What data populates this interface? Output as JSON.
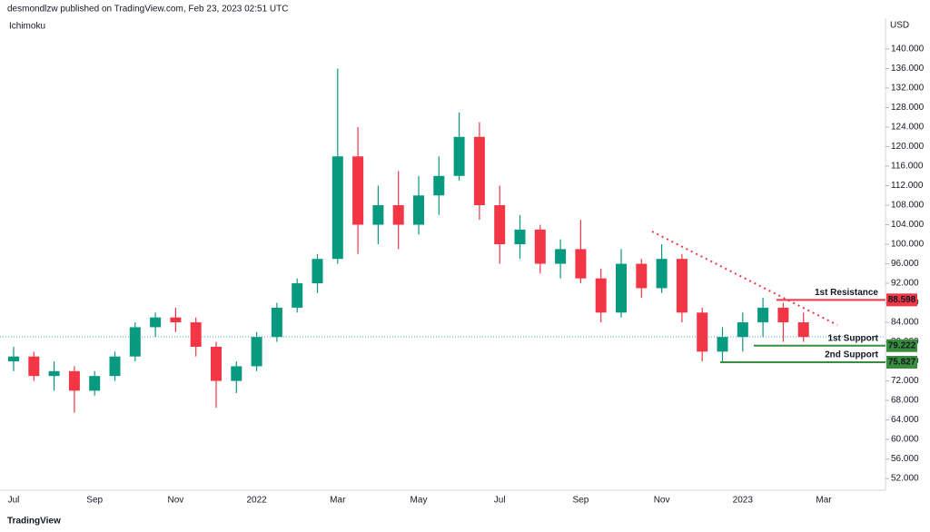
{
  "header": {
    "byline": "desmondlzw published on TradingView.com, Feb 23, 2023 02:51 UTC",
    "brand": "TradingView"
  },
  "chart_data": {
    "type": "candlestick",
    "indicator": "Ichimoku",
    "y_unit": "USD",
    "categories": [
      "Jul",
      null,
      null,
      null,
      "Sep",
      null,
      null,
      null,
      "Nov",
      null,
      null,
      null,
      "2022",
      null,
      null,
      null,
      "Mar",
      null,
      null,
      null,
      "May",
      null,
      null,
      null,
      "Jul",
      null,
      null,
      null,
      "Sep",
      null,
      null,
      null,
      "Nov",
      null,
      null,
      null,
      "2023",
      null,
      null,
      null,
      "Mar"
    ],
    "open": [
      76,
      77,
      73,
      74,
      70,
      73,
      77,
      83,
      85,
      84,
      79,
      72,
      75,
      81,
      87,
      92,
      97,
      118,
      104,
      108,
      104,
      110,
      114,
      122,
      108,
      100,
      103,
      96,
      99,
      93,
      86,
      96,
      91,
      97,
      86,
      78,
      81,
      84,
      87,
      84,
      null
    ],
    "high": [
      79,
      78,
      76,
      75,
      74,
      78,
      84,
      86,
      87,
      85,
      80,
      76,
      82,
      88,
      93,
      98,
      136,
      124,
      112,
      115,
      114,
      118,
      127,
      125,
      112,
      106,
      104,
      101,
      105,
      95,
      99,
      97,
      100,
      98,
      87,
      83,
      86,
      89,
      88,
      86,
      null
    ],
    "low": [
      74,
      72,
      70,
      65.5,
      69,
      72,
      76,
      81,
      82,
      77,
      66.5,
      69.5,
      74,
      80,
      86,
      90,
      96,
      98,
      100,
      99,
      102,
      106,
      113,
      105,
      96,
      97,
      94,
      93,
      92,
      84,
      85,
      89,
      90,
      84,
      76,
      76,
      78,
      81,
      80,
      80,
      null
    ],
    "close": [
      77,
      73,
      74,
      70,
      73,
      77,
      83,
      85,
      84,
      79,
      72,
      75,
      81,
      87,
      92,
      97,
      118,
      104,
      108,
      104,
      110,
      114,
      122,
      108,
      100,
      103,
      96,
      99,
      93,
      86,
      96,
      91,
      97,
      86,
      78,
      81,
      84,
      87,
      84,
      81,
      null
    ],
    "up_color": "#089981",
    "down_color": "#f23645",
    "ylim": [
      49.6,
      142.6
    ],
    "yticks": [
      {
        "value": 52,
        "label": "52.000"
      },
      {
        "value": 56,
        "label": "56.000"
      },
      {
        "value": 60,
        "label": "60.000"
      },
      {
        "value": 64,
        "label": "64.000"
      },
      {
        "value": 68,
        "label": "68.000"
      },
      {
        "value": 72,
        "label": "72.000"
      },
      {
        "value": 76,
        "label": "76.000"
      },
      {
        "value": 80,
        "label": "80.000"
      },
      {
        "value": 84,
        "label": "84.000"
      },
      {
        "value": 88,
        "label": "88.000"
      },
      {
        "value": 92,
        "label": "92.000"
      },
      {
        "value": 96,
        "label": "96.000"
      },
      {
        "value": 100,
        "label": "100.000"
      },
      {
        "value": 104,
        "label": "104.000"
      },
      {
        "value": 108,
        "label": "108.000"
      },
      {
        "value": 112,
        "label": "112.000"
      },
      {
        "value": 116,
        "label": "116.000"
      },
      {
        "value": 120,
        "label": "120.000"
      },
      {
        "value": 124,
        "label": "124.000"
      },
      {
        "value": 128,
        "label": "128.000"
      },
      {
        "value": 132,
        "label": "132.000"
      },
      {
        "value": 136,
        "label": "136.000"
      },
      {
        "value": 140,
        "label": "140.000"
      }
    ],
    "levels": [
      {
        "name": "1st Resistance",
        "value": 88.598,
        "color": "#f23645"
      },
      {
        "name": "1st Support",
        "value": 79.222,
        "color": "#388e3c"
      },
      {
        "name": "2nd Support",
        "value": 75.827,
        "color": "#388e3c"
      }
    ]
  }
}
